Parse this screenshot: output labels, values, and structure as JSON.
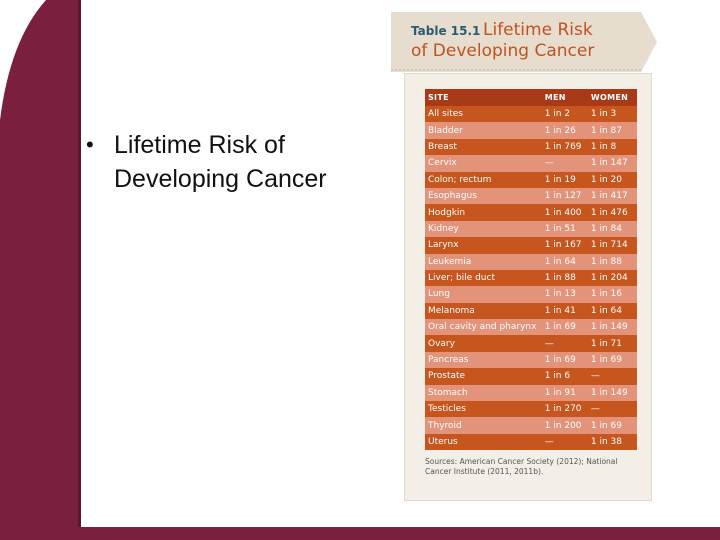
{
  "slide": {
    "bullet": "Lifetime Risk of\nDeveloping Cancer",
    "colors": {
      "frame": "#7b1f3e",
      "table_header": "#a83a18",
      "row_dark": "#c6551e",
      "row_light": "#e3937a",
      "title_text": "#c0521e"
    }
  },
  "figure": {
    "table_number": "Table 15.1",
    "title_line1": "Lifetime Risk",
    "title_line2": "of Developing Cancer",
    "columns": [
      "SITE",
      "MEN",
      "WOMEN"
    ],
    "rows": [
      [
        "All sites",
        "1 in 2",
        "1 in 3"
      ],
      [
        "Bladder",
        "1 in 26",
        "1 in 87"
      ],
      [
        "Breast",
        "1 in 769",
        "1 in 8"
      ],
      [
        "Cervix",
        "—",
        "1 in 147"
      ],
      [
        "Colon; rectum",
        "1 in 19",
        "1 in 20"
      ],
      [
        "Esophagus",
        "1 in 127",
        "1 in 417"
      ],
      [
        "Hodgkin",
        "1 in 400",
        "1 in 476"
      ],
      [
        "Kidney",
        "1 in 51",
        "1 in 84"
      ],
      [
        "Larynx",
        "1 in 167",
        "1 in 714"
      ],
      [
        "Leukemia",
        "1 in 64",
        "1 in 88"
      ],
      [
        "Liver; bile duct",
        "1 in 88",
        "1 in 204"
      ],
      [
        "Lung",
        "1 in 13",
        "1 in 16"
      ],
      [
        "Melanoma",
        "1 in 41",
        "1 in 64"
      ],
      [
        "Oral cavity and pharynx",
        "1 in 69",
        "1 in 149"
      ],
      [
        "Ovary",
        "—",
        "1 in 71"
      ],
      [
        "Pancreas",
        "1 in 69",
        "1 in 69"
      ],
      [
        "Prostate",
        "1 in 6",
        "—"
      ],
      [
        "Stomach",
        "1 in 91",
        "1 in 149"
      ],
      [
        "Testicles",
        "1 in 270",
        "—"
      ],
      [
        "Thyroid",
        "1 in 200",
        "1 in 69"
      ],
      [
        "Uterus",
        "—",
        "1 in 38"
      ]
    ],
    "source": "Sources: American Cancer Society (2012); National Cancer Institute (2011, 2011b)."
  }
}
